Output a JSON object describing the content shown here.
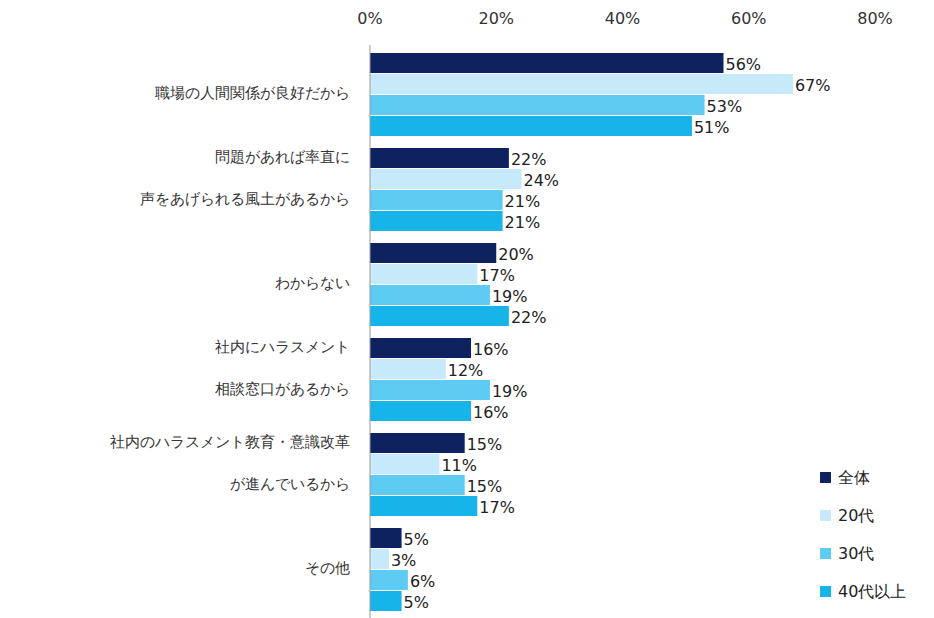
{
  "chart_data": {
    "type": "bar",
    "orientation": "horizontal",
    "categories": [
      "職場の人間関係が良好だから",
      "問題があれば率直に\n声をあげられる風土があるから",
      "わからない",
      "社内にハラスメント\n相談窓口があるから",
      "社内のハラスメント教育・意識改革\nが進んでいるから",
      "その他"
    ],
    "series": [
      {
        "name": "全体",
        "color": "#0e2260",
        "values": [
          56,
          22,
          20,
          16,
          15,
          5
        ],
        "value_labels": [
          "56%",
          "22%",
          "20%",
          "16%",
          "15%",
          "5%"
        ]
      },
      {
        "name": "20代",
        "color": "#c6eaf9",
        "values": [
          67,
          24,
          17,
          12,
          11,
          3
        ],
        "value_labels": [
          "67%",
          "24%",
          "17%",
          "12%",
          "11%",
          "3%"
        ]
      },
      {
        "name": "30代",
        "color": "#5dcbf2",
        "values": [
          53,
          21,
          19,
          19,
          15,
          6
        ],
        "value_labels": [
          "53%",
          "21%",
          "19%",
          "19%",
          "15%",
          "6%"
        ]
      },
      {
        "name": "40代以上",
        "color": "#17b4ea",
        "values": [
          51,
          21,
          22,
          16,
          17,
          5
        ],
        "value_labels": [
          "51%",
          "21%",
          "22%",
          "16%",
          "17%",
          "5%"
        ]
      }
    ],
    "xlim": [
      0,
      80
    ],
    "xticks": [
      {
        "value": 0,
        "label": "0%"
      },
      {
        "value": 20,
        "label": "20%"
      },
      {
        "value": 40,
        "label": "40%"
      },
      {
        "value": 60,
        "label": "60%"
      },
      {
        "value": 80,
        "label": "80%"
      }
    ],
    "grid": false,
    "legend": "lower right",
    "data_labels": true
  }
}
